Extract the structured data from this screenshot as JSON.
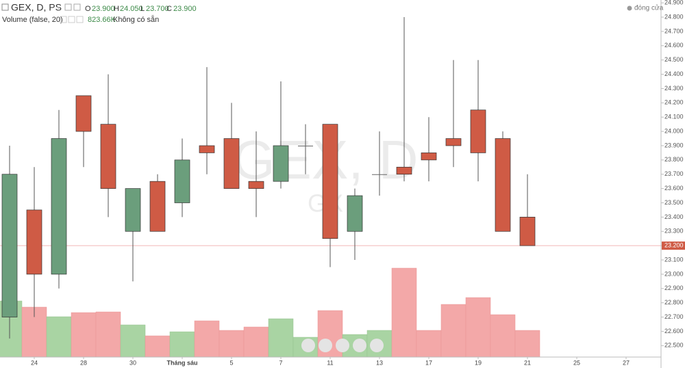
{
  "header": {
    "symbol": "GEX, D, PS",
    "o_label": "O",
    "o": "23.900",
    "h_label": "H",
    "h": "24.050",
    "l_label": "L",
    "l": "23.700",
    "c_label": "C",
    "c": "23.900",
    "volume_title": "Volume (false, 20)",
    "volume_value": "823.66K",
    "volume_note": "Không có sẵn",
    "status": "đóng cửa"
  },
  "chart_data": {
    "type": "candlestick",
    "watermark": "GEX, D",
    "watermark_sub": "GX",
    "categories": [
      null,
      "24",
      null,
      "28",
      null,
      "30",
      null,
      "Tháng sáu",
      null,
      "5",
      null,
      "7",
      null,
      "11",
      null,
      "13",
      null,
      "17",
      null,
      "19",
      null,
      "21",
      null,
      "25",
      null,
      "27"
    ],
    "open": [
      22.7,
      23.45,
      23.0,
      24.25,
      24.05,
      23.3,
      23.65,
      23.5,
      23.9,
      23.95,
      23.65,
      23.65,
      23.9,
      24.05,
      23.3,
      23.7,
      23.75,
      23.85,
      23.95,
      24.15,
      23.95,
      23.4,
      null,
      null,
      null,
      null
    ],
    "high": [
      23.9,
      23.75,
      24.15,
      24.25,
      24.4,
      23.6,
      23.7,
      23.95,
      24.45,
      24.2,
      24.0,
      24.35,
      24.05,
      24.05,
      23.6,
      24.0,
      24.8,
      24.1,
      24.5,
      24.5,
      24.0,
      23.7,
      null,
      null,
      null,
      null
    ],
    "low": [
      22.55,
      22.7,
      22.9,
      23.75,
      23.4,
      22.95,
      23.3,
      23.4,
      23.7,
      23.6,
      23.4,
      23.6,
      23.7,
      23.05,
      23.1,
      23.55,
      23.65,
      23.65,
      23.75,
      23.65,
      23.3,
      23.2,
      null,
      null,
      null,
      null
    ],
    "close": [
      23.7,
      23.0,
      23.95,
      24.0,
      23.6,
      23.6,
      23.3,
      23.8,
      23.85,
      23.6,
      23.6,
      23.9,
      23.9,
      23.25,
      23.55,
      23.7,
      23.7,
      23.8,
      23.9,
      23.85,
      23.3,
      23.2,
      null,
      null,
      null,
      null
    ],
    "volume": [
      1732000,
      1542000,
      1246000,
      1373000,
      1394000,
      993000,
      655000,
      781000,
      1119000,
      824000,
      929000,
      1183000,
      612000,
      1436000,
      697000,
      824000,
      2746000,
      824000,
      1626000,
      1837000,
      1309000,
      823660,
      null,
      null,
      null,
      null
    ],
    "up_color": "#6b9e7c",
    "down_color": "#cf5b45",
    "volume_up_color": "#a9d4a3",
    "volume_down_color": "#f3a8a8",
    "ylim": [
      22.42,
      24.92
    ],
    "yticks": [
      {
        "value": 22.5,
        "label": "22.500"
      },
      {
        "value": 22.6,
        "label": "22.600"
      },
      {
        "value": 22.7,
        "label": "22.700"
      },
      {
        "value": 22.8,
        "label": "22.800"
      },
      {
        "value": 22.9,
        "label": "22.900"
      },
      {
        "value": 23.0,
        "label": "23.000"
      },
      {
        "value": 23.1,
        "label": "23.100"
      },
      {
        "value": 23.2,
        "label": "23.200"
      },
      {
        "value": 23.3,
        "label": "23.300"
      },
      {
        "value": 23.4,
        "label": "23.400"
      },
      {
        "value": 23.5,
        "label": "23.500"
      },
      {
        "value": 23.6,
        "label": "23.600"
      },
      {
        "value": 23.7,
        "label": "23.700"
      },
      {
        "value": 23.8,
        "label": "23.800"
      },
      {
        "value": 23.9,
        "label": "23.900"
      },
      {
        "value": 24.0,
        "label": "24.000"
      },
      {
        "value": 24.1,
        "label": "24.100"
      },
      {
        "value": 24.2,
        "label": "24.200"
      },
      {
        "value": 24.3,
        "label": "24.300"
      },
      {
        "value": 24.4,
        "label": "24.400"
      },
      {
        "value": 24.5,
        "label": "24.500"
      },
      {
        "value": 24.6,
        "label": "24.600"
      },
      {
        "value": 24.7,
        "label": "24.700"
      },
      {
        "value": 24.8,
        "label": "24.800"
      },
      {
        "value": 24.9,
        "label": "24.900"
      }
    ],
    "last_price": {
      "value": 23.2,
      "label": "23.200"
    }
  }
}
